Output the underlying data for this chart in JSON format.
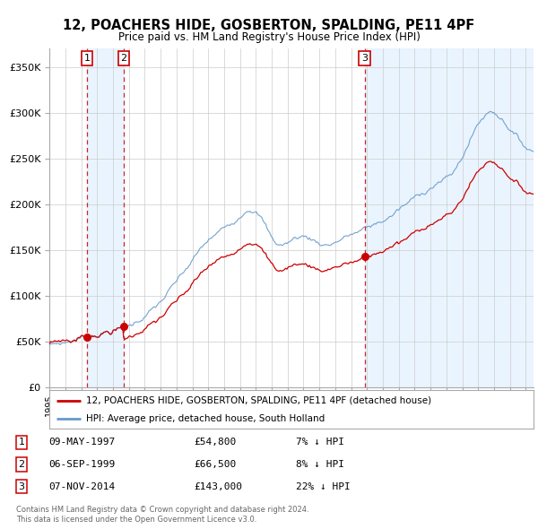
{
  "title": "12, POACHERS HIDE, GOSBERTON, SPALDING, PE11 4PF",
  "subtitle": "Price paid vs. HM Land Registry's House Price Index (HPI)",
  "legend_line1": "12, POACHERS HIDE, GOSBERTON, SPALDING, PE11 4PF (detached house)",
  "legend_line2": "HPI: Average price, detached house, South Holland",
  "footer1": "Contains HM Land Registry data © Crown copyright and database right 2024.",
  "footer2": "This data is licensed under the Open Government Licence v3.0.",
  "sale_dates": [
    "09-MAY-1997",
    "06-SEP-1999",
    "07-NOV-2014"
  ],
  "sale_prices": [
    54800,
    66500,
    143000
  ],
  "sale_labels": [
    "1",
    "2",
    "3"
  ],
  "sale_years": [
    1997.36,
    1999.68,
    2014.85
  ],
  "vline_color": "#cc0000",
  "hpi_line_color": "#6699cc",
  "price_line_color": "#cc0000",
  "table_rows": [
    [
      "1",
      "09-MAY-1997",
      "£54,800",
      "7% ↓ HPI"
    ],
    [
      "2",
      "06-SEP-1999",
      "£66,500",
      "8% ↓ HPI"
    ],
    [
      "3",
      "07-NOV-2014",
      "£143,000",
      "22% ↓ HPI"
    ]
  ],
  "ylim": [
    0,
    370000
  ],
  "xlim_start": 1995.0,
  "xlim_end": 2025.5,
  "plot_bg_color": "#ffffff",
  "shade_color": "#ddeeff",
  "grid_color": "#cccccc"
}
